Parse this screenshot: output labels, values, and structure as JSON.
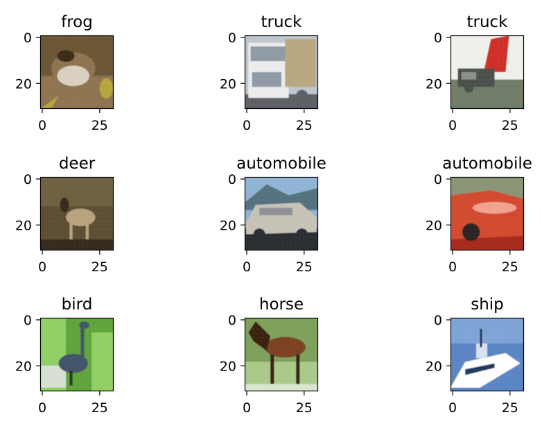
{
  "figure": {
    "panels": [
      {
        "title": "frog",
        "image": "cifar-frog-photo",
        "x_ticks": [
          "0",
          "25"
        ],
        "y_ticks": [
          "0",
          "20"
        ],
        "palette": {
          "bg": "#6b5434",
          "mid": "#8d7350",
          "fg": "#d9d0c0",
          "accent": "#b6a43a",
          "dark": "#3b2b19"
        }
      },
      {
        "title": "truck",
        "image": "cifar-truck-photo-1",
        "x_ticks": [
          "0",
          "25"
        ],
        "y_ticks": [
          "0",
          "20"
        ],
        "palette": {
          "bg": "#bcc6cd",
          "mid": "#8f9aa4",
          "fg": "#ececec",
          "accent": "#b7a67f",
          "dark": "#5b5e63"
        }
      },
      {
        "title": "truck",
        "image": "cifar-truck-photo-2",
        "x_ticks": [
          "0",
          "25"
        ],
        "y_ticks": [
          "0",
          "20"
        ],
        "palette": {
          "bg": "#eff0ec",
          "mid": "#8d8f8a",
          "fg": "#cf2f28",
          "accent": "#6f7b67",
          "dark": "#4a4f4c"
        }
      },
      {
        "title": "deer",
        "image": "cifar-deer-photo",
        "x_ticks": [
          "0",
          "25"
        ],
        "y_ticks": [
          "0",
          "20"
        ],
        "palette": {
          "bg": "#5b4d33",
          "mid": "#6d613f",
          "fg": "#b7a37b",
          "accent": "#7f7b4f",
          "dark": "#352b1f"
        }
      },
      {
        "title": "automobile",
        "image": "cifar-automobile-photo-1",
        "x_ticks": [
          "0",
          "25"
        ],
        "y_ticks": [
          "0",
          "20"
        ],
        "palette": {
          "bg": "#8fb4d3",
          "mid": "#53717e",
          "fg": "#c7c2b6",
          "accent": "#8d8f95",
          "dark": "#2c2f33"
        }
      },
      {
        "title": "automobile",
        "image": "cifar-automobile-photo-2",
        "x_ticks": [
          "0",
          "25"
        ],
        "y_ticks": [
          "0",
          "20"
        ],
        "palette": {
          "bg": "#8a9475",
          "mid": "#d24a2f",
          "fg": "#f2a18e",
          "accent": "#a42a1b",
          "dark": "#2b2422"
        }
      },
      {
        "title": "bird",
        "image": "cifar-bird-photo",
        "x_ticks": [
          "0",
          "25"
        ],
        "y_ticks": [
          "0",
          "20"
        ],
        "palette": {
          "bg": "#5fa43b",
          "mid": "#8fcf63",
          "fg": "#42526a",
          "accent": "#d8e0d6",
          "dark": "#24371d"
        }
      },
      {
        "title": "horse",
        "image": "cifar-horse-photo",
        "x_ticks": [
          "0",
          "25"
        ],
        "y_ticks": [
          "0",
          "20"
        ],
        "palette": {
          "bg": "#7da05a",
          "mid": "#a9c989",
          "fg": "#7a4223",
          "accent": "#d8e6cc",
          "dark": "#3b210f"
        }
      },
      {
        "title": "ship",
        "image": "cifar-ship-photo",
        "x_ticks": [
          "0",
          "25"
        ],
        "y_ticks": [
          "0",
          "20"
        ],
        "palette": {
          "bg": "#5a84c3",
          "mid": "#7ea3d6",
          "fg": "#ffffff",
          "accent": "#d7e2ee",
          "dark": "#1f3a5f"
        }
      }
    ]
  }
}
